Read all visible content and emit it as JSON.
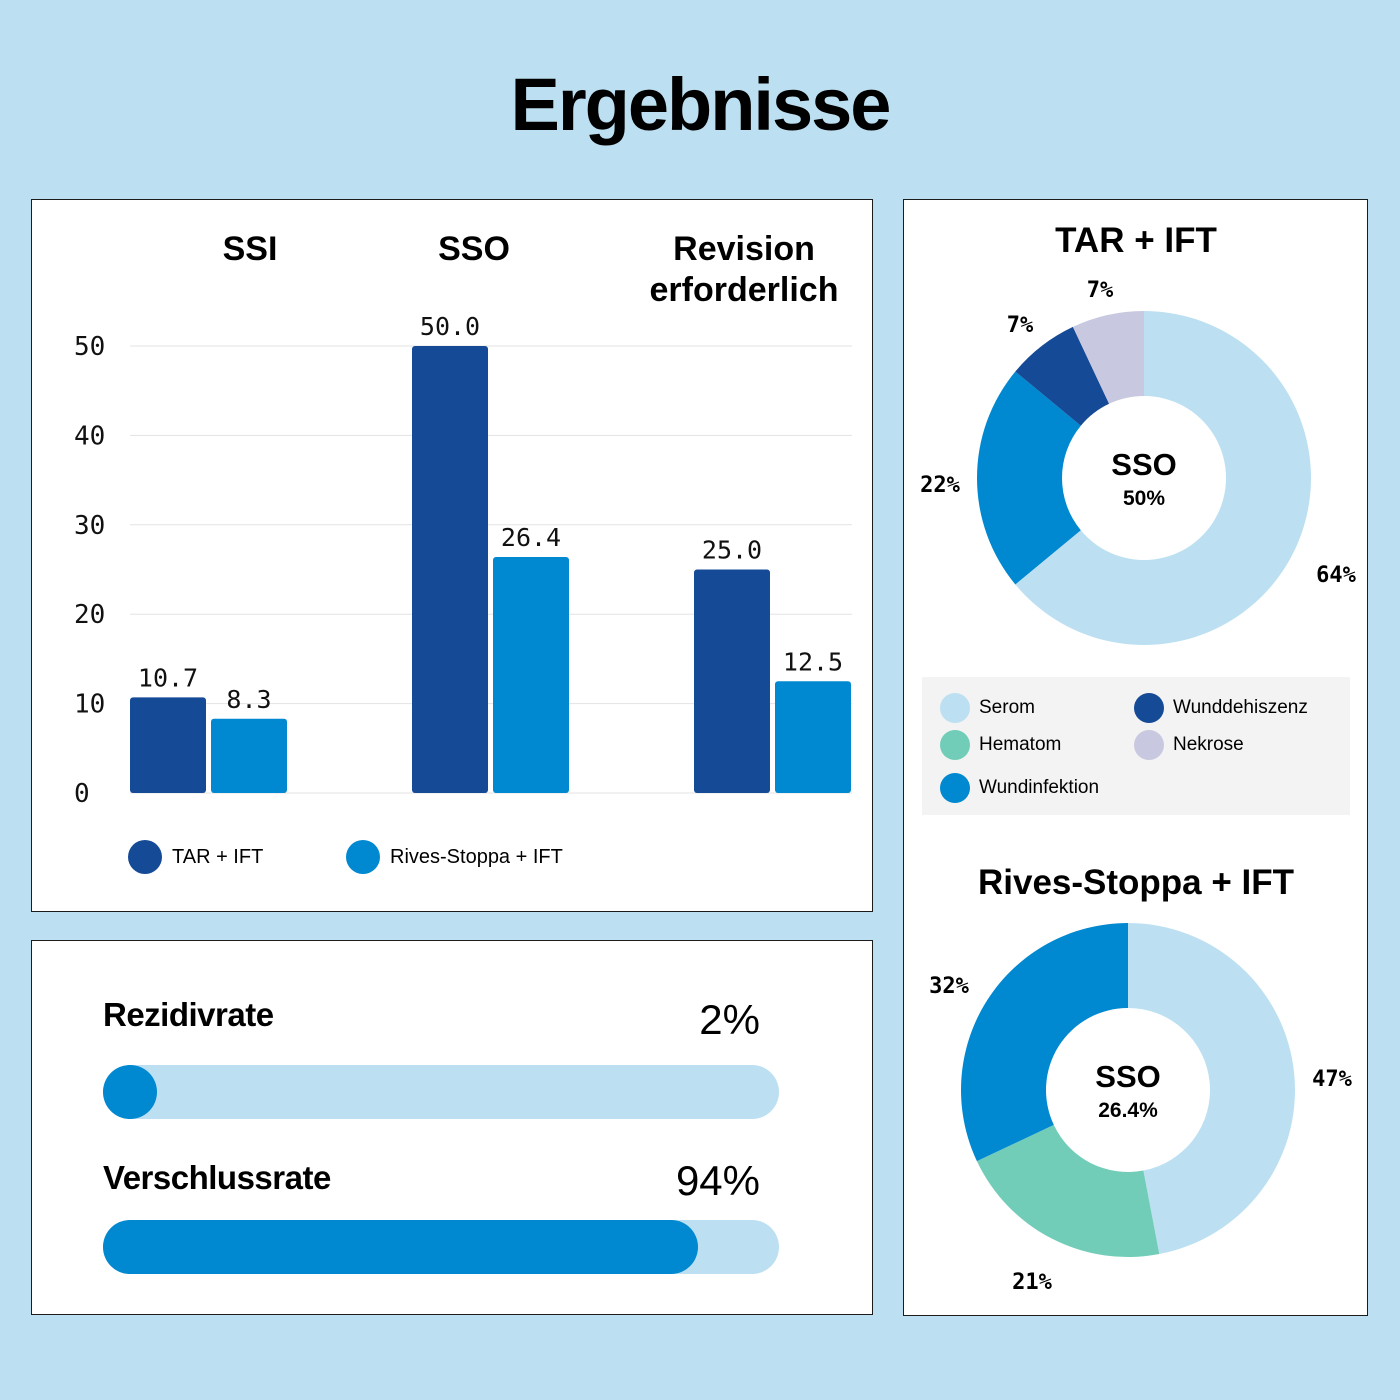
{
  "title": "Ergebnisse",
  "chart_data": [
    {
      "type": "bar",
      "categories": [
        "SSI",
        "SSO",
        "Revision erforderlich"
      ],
      "category_lines": [
        [
          "SSI"
        ],
        [
          "SSO"
        ],
        [
          "Revision",
          "erforderlich"
        ]
      ],
      "series": [
        {
          "name": "TAR + IFT",
          "color": "#154a96",
          "values": [
            10.7,
            50.0,
            25.0
          ],
          "labels": [
            "10.7",
            "50.0",
            "25.0"
          ]
        },
        {
          "name": "Rives-Stoppa + IFT",
          "color": "#0088d0",
          "values": [
            8.3,
            26.4,
            12.5
          ],
          "labels": [
            "8.3",
            "26.4",
            "12.5"
          ]
        }
      ],
      "yticks": [
        "0",
        "10",
        "20",
        "30",
        "40",
        "50"
      ],
      "ylim": [
        0,
        50
      ],
      "grid": true,
      "legend": "bottom-left"
    },
    {
      "type": "pie",
      "title": "TAR + IFT",
      "center_label": "SSO",
      "center_value": "50%",
      "slices": [
        {
          "label": "Serom",
          "value": 64,
          "text": "64%",
          "color": "#bce0f2"
        },
        {
          "label": "Wundinfektion",
          "value": 22,
          "text": "22%",
          "color": "#0088d0"
        },
        {
          "label": "Wunddehiszenz",
          "value": 7,
          "text": "7%",
          "color": "#154a96"
        },
        {
          "label": "Nekrose",
          "value": 7,
          "text": "7%",
          "color": "#c8c8e0"
        }
      ]
    },
    {
      "type": "pie",
      "title": "Rives-Stoppa + IFT",
      "center_label": "SSO",
      "center_value": "26.4%",
      "slices": [
        {
          "label": "Serom",
          "value": 47,
          "text": "47%",
          "color": "#bce0f2"
        },
        {
          "label": "Hematom",
          "value": 21,
          "text": "21%",
          "color": "#72cdb8"
        },
        {
          "label": "Wundinfektion",
          "value": 32,
          "text": "32%",
          "color": "#0088d0"
        }
      ]
    }
  ],
  "pie_legend": [
    {
      "label": "Serom",
      "color": "#bce0f2"
    },
    {
      "label": "Wunddehiszenz",
      "color": "#154a96"
    },
    {
      "label": "Hematom",
      "color": "#72cdb8"
    },
    {
      "label": "Nekrose",
      "color": "#c8c8e0"
    },
    {
      "label": "Wundinfektion",
      "color": "#0088d0"
    }
  ],
  "rates": [
    {
      "label": "Rezidivrate",
      "value_text": "2%",
      "value": 2
    },
    {
      "label": "Verschlussrate",
      "value_text": "94%",
      "value": 94
    }
  ],
  "colors": {
    "bg": "#bce0f2",
    "dark_blue": "#154a96",
    "blue": "#0088d0",
    "light_blue": "#bce0f2"
  }
}
